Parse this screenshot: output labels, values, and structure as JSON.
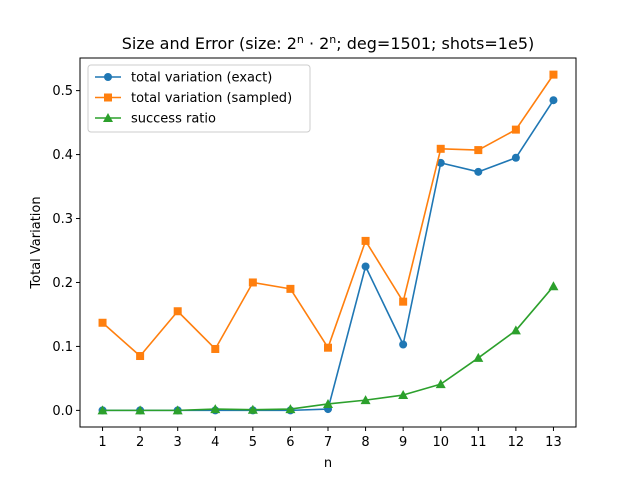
{
  "chart_data": {
    "type": "line",
    "title_prefix": "Size and Error (size: 2",
    "title_sup1": "n",
    "title_mid": " · 2",
    "title_sup2": "n",
    "title_suffix": "; deg=1501; shots=1e5)",
    "xlabel": "n",
    "ylabel": "Total Variation",
    "x": [
      1,
      2,
      3,
      4,
      5,
      6,
      7,
      8,
      9,
      10,
      11,
      12,
      13
    ],
    "xlim": [
      0.4,
      13.6
    ],
    "ylim": [
      -0.026,
      0.551
    ],
    "yticks": [
      0.0,
      0.1,
      0.2,
      0.3,
      0.4,
      0.5
    ],
    "ytick_labels": [
      "0.0",
      "0.1",
      "0.2",
      "0.3",
      "0.4",
      "0.5"
    ],
    "legend_position": "top-left",
    "grid": false,
    "series": [
      {
        "name": "total variation (exact)",
        "color": "#1f77b4",
        "marker": "circle",
        "values": [
          0.0,
          0.0,
          0.0,
          0.0,
          0.0,
          0.0,
          0.002,
          0.225,
          0.103,
          0.387,
          0.373,
          0.395,
          0.485
        ]
      },
      {
        "name": "total variation (sampled)",
        "color": "#ff7f0e",
        "marker": "square",
        "values": [
          0.137,
          0.085,
          0.155,
          0.096,
          0.2,
          0.19,
          0.098,
          0.265,
          0.17,
          0.409,
          0.407,
          0.439,
          0.525
        ]
      },
      {
        "name": "success ratio",
        "color": "#2ca02c",
        "marker": "triangle",
        "values": [
          0.0,
          0.0,
          0.0,
          0.002,
          0.001,
          0.002,
          0.01,
          0.016,
          0.024,
          0.041,
          0.082,
          0.125,
          0.194
        ]
      }
    ]
  }
}
